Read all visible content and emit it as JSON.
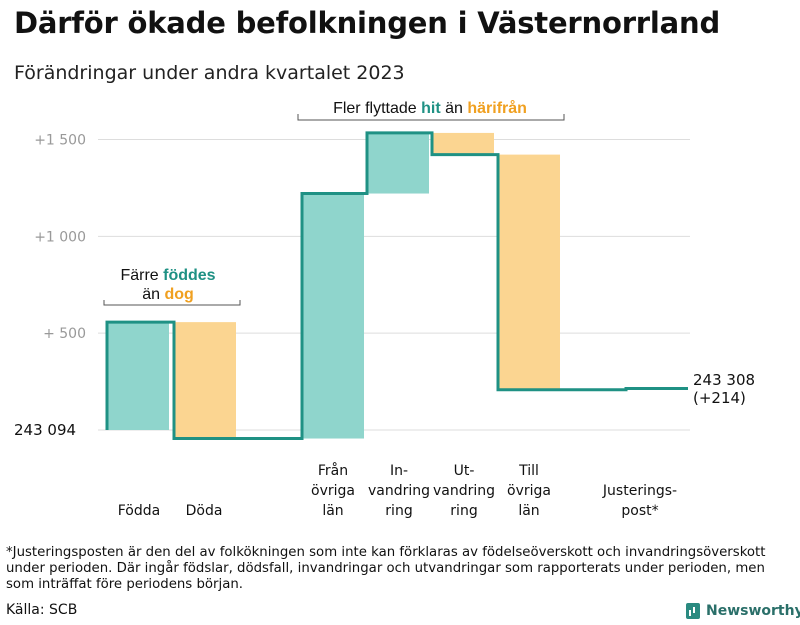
{
  "header": {
    "title": "Därför ökade befolkningen i Västernorrland",
    "subtitle": "Förändringar under andra kvartalet 2023"
  },
  "chart_data": {
    "type": "waterfall",
    "base": 243094,
    "end": 243308,
    "y_ticks": [
      {
        "value": 243594,
        "label": "+    500"
      },
      {
        "value": 244094,
        "label": "+1   000"
      },
      {
        "value": 244594,
        "label": "+1   500"
      }
    ],
    "start_label": "243   094",
    "end_label_line1": "243 308",
    "end_label_line2": "(+214)",
    "steps": [
      {
        "key": "fodda",
        "label_lines": [
          "Födda"
        ],
        "change": 557
      },
      {
        "key": "doda",
        "label_lines": [
          "Döda"
        ],
        "change": -601
      },
      {
        "key": "fran_ovriga_lan",
        "label_lines": [
          "Från",
          "övriga",
          "län"
        ],
        "change": 1265
      },
      {
        "key": "invandring",
        "label_lines": [
          "In-",
          "vandring",
          "ring"
        ],
        "change": 313
      },
      {
        "key": "utvandring",
        "label_lines": [
          "Ut-",
          "vandring",
          "ring"
        ],
        "change": -112
      },
      {
        "key": "till_ovriga_lan",
        "label_lines": [
          "Till",
          "övriga",
          "län"
        ],
        "change": -1214
      },
      {
        "key": "justeringspost",
        "label_lines": [
          "Justerings-",
          "post*"
        ],
        "change": 6
      }
    ],
    "annotations": [
      {
        "key": "birth",
        "line1_prefix": "Färre ",
        "line1_highlight": "föddes",
        "line2_prefix": "än ",
        "line2_highlight": "dog"
      },
      {
        "key": "migration",
        "prefix": "Fler flyttade ",
        "highlight1": "hit",
        "middle": "  än ",
        "highlight2": "härifrån"
      }
    ],
    "colors": {
      "increase": "#8fd5cc",
      "decrease": "#fbd591",
      "line": "#1f9184",
      "accent_teal": "#1f9184",
      "accent_orange": "#f0a020",
      "grid": "#dddddd",
      "tick": "#999999"
    }
  },
  "footnote": "*Justeringsposten är den del av folkökningen som inte kan förklaras av födelseöverskott och invandringsöverskott under perioden. Där ingår födslar, dödsfall, invandringar och utvandringar som rapporterats under perioden, men som inträffat före periodens början.",
  "source": "Källa: SCB",
  "brand": "Newsworthy"
}
